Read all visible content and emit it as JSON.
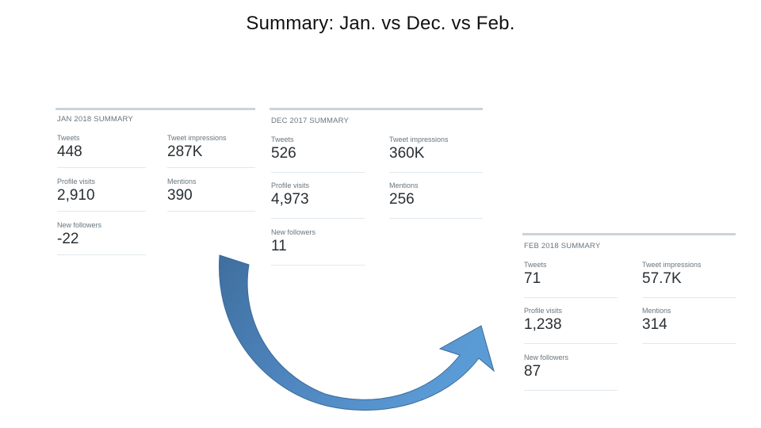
{
  "title": "Summary: Jan. vs Dec. vs Feb.",
  "colors": {
    "arrow_dark": "#4a77a8",
    "arrow_light": "#5b9bd5",
    "panel_border": "#cbd3da",
    "label": "#66757f",
    "value": "#292f33"
  },
  "panels": {
    "jan": {
      "title": "JAN 2018 SUMMARY",
      "tweets": {
        "label": "Tweets",
        "value": "448"
      },
      "impressions": {
        "label": "Tweet impressions",
        "value": "287K"
      },
      "profile_visits": {
        "label": "Profile visits",
        "value": "2,910"
      },
      "mentions": {
        "label": "Mentions",
        "value": "390"
      },
      "new_followers": {
        "label": "New followers",
        "value": "-22"
      }
    },
    "dec": {
      "title": "DEC 2017 SUMMARY",
      "tweets": {
        "label": "Tweets",
        "value": "526"
      },
      "impressions": {
        "label": "Tweet impressions",
        "value": "360K"
      },
      "profile_visits": {
        "label": "Profile visits",
        "value": "4,973"
      },
      "mentions": {
        "label": "Mentions",
        "value": "256"
      },
      "new_followers": {
        "label": "New followers",
        "value": "11"
      }
    },
    "feb": {
      "title": "FEB 2018 SUMMARY",
      "tweets": {
        "label": "Tweets",
        "value": "71"
      },
      "impressions": {
        "label": "Tweet impressions",
        "value": "57.7K"
      },
      "profile_visits": {
        "label": "Profile visits",
        "value": "1,238"
      },
      "mentions": {
        "label": "Mentions",
        "value": "314"
      },
      "new_followers": {
        "label": "New followers",
        "value": "87"
      }
    }
  },
  "arrow": {
    "icon": "curved-arrow-icon"
  }
}
